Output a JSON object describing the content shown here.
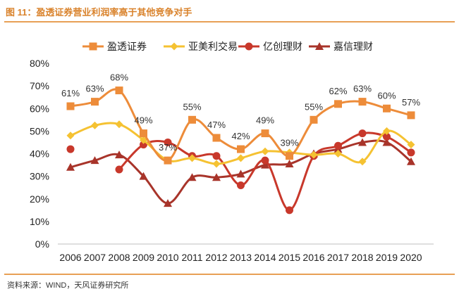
{
  "figure_title": "图 11：盈透证券营业利润率高于其他竞争对手",
  "source": "资料来源：WIND，天风证券研究所",
  "chart_data": {
    "type": "line",
    "x": [
      "2006",
      "2007",
      "2008",
      "2009",
      "2010",
      "2011",
      "2012",
      "2013",
      "2014",
      "2015",
      "2016",
      "2017",
      "2018",
      "2019",
      "2020"
    ],
    "yticks": [
      "0%",
      "10%",
      "20%",
      "30%",
      "40%",
      "50%",
      "60%",
      "70%",
      "80%"
    ],
    "ylim": [
      0,
      80
    ],
    "grid": false,
    "legend_position": "top",
    "series": [
      {
        "name": "盈透证券",
        "color": "#ed8c3a",
        "marker": "square",
        "values": [
          61,
          63,
          68,
          49,
          37,
          55,
          47,
          42,
          49,
          39,
          55,
          62,
          63,
          60,
          57
        ],
        "labels": [
          "61%",
          "63%",
          "68%",
          "49%",
          "37%",
          "55%",
          "47%",
          "42%",
          "49%",
          "39%",
          "55%",
          "62%",
          "63%",
          "60%",
          "57%"
        ]
      },
      {
        "name": "亚美利交易",
        "color": "#f5c232",
        "marker": "diamond",
        "values": [
          48,
          52.5,
          53,
          46,
          37,
          38,
          35.5,
          38,
          41,
          40.5,
          39.5,
          40,
          36.5,
          50,
          44
        ]
      },
      {
        "name": "亿创理财",
        "color": "#c8382b",
        "marker": "circle",
        "values": [
          42,
          null,
          33,
          44,
          45,
          39,
          39,
          26,
          37,
          15,
          39,
          43.5,
          49,
          47.5,
          40.5
        ]
      },
      {
        "name": "嘉信理财",
        "color": "#a8342a",
        "marker": "triangle",
        "values": [
          34,
          37,
          39.5,
          30,
          18,
          29.5,
          29.5,
          31,
          35,
          35.5,
          40,
          42,
          45,
          45,
          36.5
        ]
      }
    ]
  }
}
